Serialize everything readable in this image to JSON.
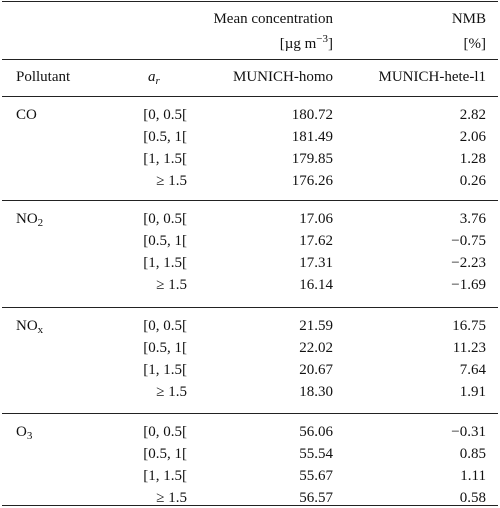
{
  "header": {
    "col_groups": [
      {
        "title": "Mean concentration",
        "unit": {
          "before": "[µg m",
          "sup": "−3",
          "after": "]"
        }
      },
      {
        "title": "NMB",
        "unit": {
          "before": "[%]"
        }
      }
    ],
    "columns": [
      {
        "base": "Pollutant"
      },
      {
        "base": "a",
        "sub": "r"
      },
      {
        "base": "MUNICH-homo"
      },
      {
        "base": "MUNICH-hete-l1"
      }
    ]
  },
  "groups": [
    {
      "pollutant": {
        "base": "CO"
      },
      "rows": [
        [
          "[0, 0.5[",
          "180.72",
          "2.82"
        ],
        [
          "[0.5, 1[",
          "181.49",
          "2.06"
        ],
        [
          "[1, 1.5[",
          "179.85",
          "1.28"
        ],
        [
          "≥ 1.5",
          "176.26",
          "0.26"
        ]
      ]
    },
    {
      "pollutant": {
        "base": "NO",
        "sub": "2"
      },
      "rows": [
        [
          "[0, 0.5[",
          "17.06",
          "3.76"
        ],
        [
          "[0.5, 1[",
          "17.62",
          "−0.75"
        ],
        [
          "[1, 1.5[",
          "17.31",
          "−2.23"
        ],
        [
          "≥ 1.5",
          "16.14",
          "−1.69"
        ]
      ]
    },
    {
      "pollutant": {
        "base": "NO",
        "sub": "x"
      },
      "rows": [
        [
          "[0, 0.5[",
          "21.59",
          "16.75"
        ],
        [
          "[0.5, 1[",
          "22.02",
          "11.23"
        ],
        [
          "[1, 1.5[",
          "20.67",
          "7.64"
        ],
        [
          "≥ 1.5",
          "18.30",
          "1.91"
        ]
      ]
    },
    {
      "pollutant": {
        "base": "O",
        "sub": "3"
      },
      "rows": [
        [
          "[0, 0.5[",
          "56.06",
          "−0.31"
        ],
        [
          "[0.5, 1[",
          "55.54",
          "0.85"
        ],
        [
          "[1, 1.5[",
          "55.67",
          "1.11"
        ],
        [
          "≥ 1.5",
          "56.57",
          "0.58"
        ]
      ]
    }
  ]
}
